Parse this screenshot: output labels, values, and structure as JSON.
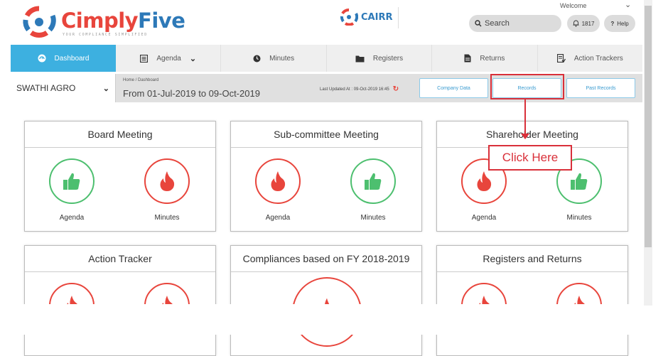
{
  "header": {
    "brand_part1": "Cimply",
    "brand_part2": "Five",
    "tagline": "YOUR COMPLIANCE SIMPLIFIED",
    "cairr_label": "CAIRR",
    "welcome": "Welcome",
    "search_placeholder": "Search",
    "notification_count": "1817",
    "help_label": "Help"
  },
  "nav": {
    "items": [
      {
        "label": "Dashboard",
        "icon": "dashboard-icon"
      },
      {
        "label": "Agenda",
        "icon": "agenda-icon"
      },
      {
        "label": "Minutes",
        "icon": "clock-icon"
      },
      {
        "label": "Registers",
        "icon": "folder-icon"
      },
      {
        "label": "Returns",
        "icon": "document-icon"
      },
      {
        "label": "Action Trackers",
        "icon": "tracker-icon"
      }
    ]
  },
  "subbar": {
    "company": "SWATHI AGRO",
    "breadcrumb": "Home / Dashboard",
    "date_range": "From 01-Jul-2019 to 09-Oct-2019",
    "last_updated": "Last Updated At : 09-Oct-2019 16:45",
    "buttons": [
      "Company Data",
      "Records",
      "Past Records"
    ]
  },
  "callout": {
    "text": "Click Here"
  },
  "cards": [
    {
      "title": "Board Meeting",
      "left": {
        "label": "Agenda",
        "status": "green"
      },
      "right": {
        "label": "Minutes",
        "status": "red"
      }
    },
    {
      "title": "Sub-committee Meeting",
      "left": {
        "label": "Agenda",
        "status": "red"
      },
      "right": {
        "label": "Minutes",
        "status": "green"
      }
    },
    {
      "title": "Shareholder Meeting",
      "left": {
        "label": "Agenda",
        "status": "red"
      },
      "right": {
        "label": "Minutes",
        "status": "green"
      }
    },
    {
      "title": "Action Tracker"
    },
    {
      "title": "Compliances based on FY 2018-2019"
    },
    {
      "title": "Registers and Returns"
    }
  ],
  "colors": {
    "accent": "#3db0e0",
    "brand_red": "#e8453c",
    "brand_blue": "#2d79b8",
    "green": "#4dbf6f",
    "annotation_red": "#d9303a"
  }
}
